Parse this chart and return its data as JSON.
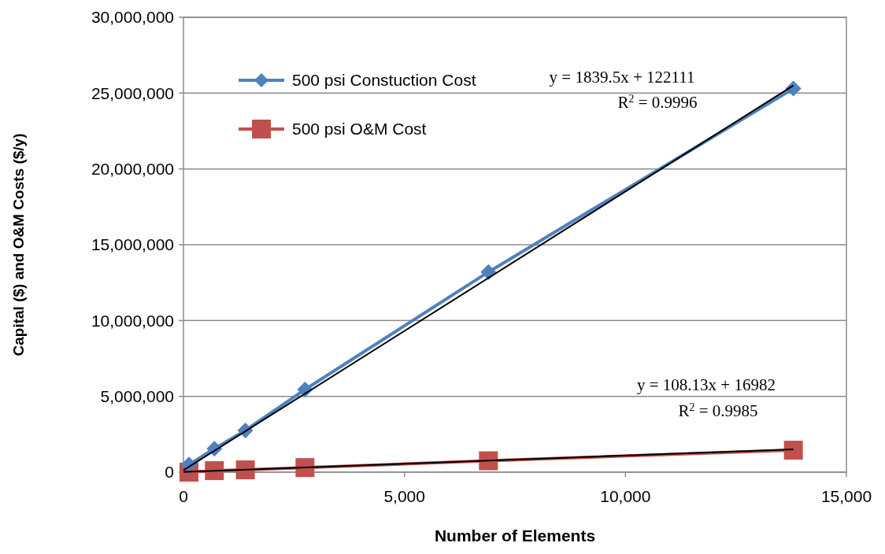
{
  "chart_data": {
    "type": "line",
    "xlabel": "Number of Elements",
    "ylabel": "Capital ($) and O&M Costs ($/y)",
    "xlim": [
      0,
      15000
    ],
    "xticks": [
      0,
      {
        "value": 5000,
        "label": "5,000"
      },
      {
        "value": 10000,
        "label": "10,000"
      },
      {
        "value": 15000,
        "label": "15,000"
      }
    ],
    "ylim": [
      0,
      30000000
    ],
    "yticks": [
      0,
      {
        "value": 5000000,
        "label": "5,000,000"
      },
      {
        "value": 10000000,
        "label": "10,000,000"
      },
      {
        "value": 15000000,
        "label": "15,000,000"
      },
      {
        "value": 20000000,
        "label": "20,000,000"
      },
      {
        "value": 25000000,
        "label": "25,000,000"
      },
      {
        "value": 30000000,
        "label": "30,000,000"
      }
    ],
    "grid": "y",
    "legend": "top left",
    "series": [
      {
        "name": "500 psi Constuction Cost",
        "color": "#4f81bd",
        "marker": "diamond",
        "x": [
          125,
          700,
          1400,
          2750,
          6900,
          13800
        ],
        "values": [
          500000,
          1550000,
          2750000,
          5450000,
          13200000,
          25300000
        ]
      },
      {
        "name": "500 psi O&M Cost",
        "color": "#c0504d",
        "marker": "square",
        "x": [
          125,
          700,
          1400,
          2750,
          6900,
          13800
        ],
        "values": [
          0,
          100000,
          150000,
          300000,
          750000,
          1450000
        ]
      },
      {
        "type": "line",
        "color": "#000000",
        "marker": "none",
        "x": [
          0,
          13800
        ],
        "values": [
          120000,
          25500000
        ]
      },
      {
        "type": "line",
        "color": "#000000",
        "marker": "none",
        "x": [
          0,
          13800
        ],
        "values": [
          17000,
          1510000
        ]
      }
    ],
    "annotations": [
      "y = 1839.5x + 122111",
      "R$^{2}$ = 0.9996",
      "y = 108.13x + 16982",
      "R$^{2}$ = 0.9985"
    ]
  }
}
